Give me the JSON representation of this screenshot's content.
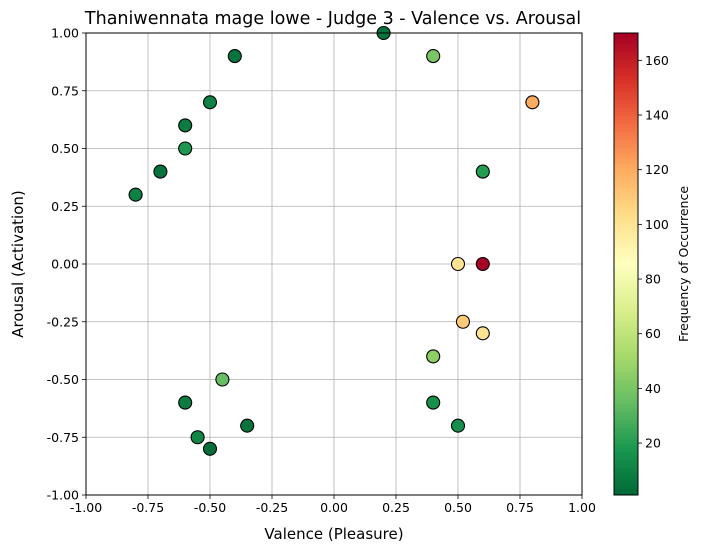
{
  "chart_data": {
    "type": "scatter",
    "title": "Thaniwennata mage lowe - Judge 3 - Valence vs. Arousal",
    "xlabel": "Valence (Pleasure)",
    "ylabel": "Arousal (Activation)",
    "xlim": [
      -1.0,
      1.0
    ],
    "ylim": [
      -1.0,
      1.0
    ],
    "xticks": [
      "-1.00",
      "-0.75",
      "-0.50",
      "-0.25",
      "0.00",
      "0.25",
      "0.50",
      "0.75",
      "1.00"
    ],
    "yticks": [
      "-1.00",
      "-0.75",
      "-0.50",
      "-0.25",
      "0.00",
      "0.25",
      "0.50",
      "0.75",
      "1.00"
    ],
    "grid": true,
    "colorbar": {
      "label": "Frequency of Occurrence",
      "colormap": "RdYlGn_r",
      "range": [
        1,
        170
      ],
      "ticks": [
        "20",
        "40",
        "60",
        "80",
        "100",
        "120",
        "140",
        "160"
      ]
    },
    "points": [
      {
        "x": 0.2,
        "y": 1.0,
        "frequency": 5
      },
      {
        "x": 0.4,
        "y": 0.9,
        "frequency": 40
      },
      {
        "x": -0.4,
        "y": 0.9,
        "frequency": 5
      },
      {
        "x": 0.8,
        "y": 0.7,
        "frequency": 120
      },
      {
        "x": -0.5,
        "y": 0.7,
        "frequency": 10
      },
      {
        "x": -0.6,
        "y": 0.6,
        "frequency": 8
      },
      {
        "x": -0.6,
        "y": 0.5,
        "frequency": 18
      },
      {
        "x": 0.6,
        "y": 0.4,
        "frequency": 20
      },
      {
        "x": -0.7,
        "y": 0.4,
        "frequency": 5
      },
      {
        "x": -0.8,
        "y": 0.3,
        "frequency": 10
      },
      {
        "x": 0.5,
        "y": 0.0,
        "frequency": 100
      },
      {
        "x": 0.6,
        "y": 0.0,
        "frequency": 170
      },
      {
        "x": 0.52,
        "y": -0.25,
        "frequency": 110
      },
      {
        "x": 0.6,
        "y": -0.3,
        "frequency": 100
      },
      {
        "x": 0.4,
        "y": -0.4,
        "frequency": 45
      },
      {
        "x": -0.45,
        "y": -0.5,
        "frequency": 35
      },
      {
        "x": 0.4,
        "y": -0.6,
        "frequency": 15
      },
      {
        "x": -0.6,
        "y": -0.6,
        "frequency": 8
      },
      {
        "x": 0.5,
        "y": -0.7,
        "frequency": 15
      },
      {
        "x": -0.35,
        "y": -0.7,
        "frequency": 5
      },
      {
        "x": -0.55,
        "y": -0.75,
        "frequency": 12
      },
      {
        "x": -0.5,
        "y": -0.8,
        "frequency": 3
      }
    ]
  }
}
